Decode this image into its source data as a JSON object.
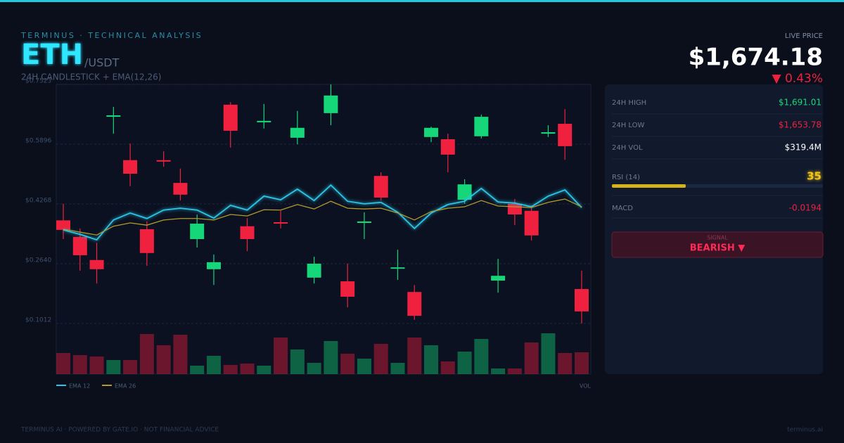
{
  "header": {
    "kicker": "TERMINUS · TECHNICAL ANALYSIS",
    "symbol": "ETH",
    "pair": "/USDT",
    "subtitle": "24H CANDLESTICK + EMA(12,26)"
  },
  "chart_data": {
    "type": "candlestick",
    "open": [
      0.382,
      0.337,
      0.274,
      0.664,
      0.546,
      0.358,
      0.546,
      0.484,
      0.331,
      0.249,
      0.697,
      0.366,
      0.649,
      0.377,
      0.607,
      0.226,
      0.674,
      0.216,
      0.375,
      0.503,
      0.251,
      0.187,
      0.609,
      0.603,
      0.438,
      0.611,
      0.218,
      0.427,
      0.408,
      0.618,
      0.645,
      0.195
    ],
    "high": [
      0.427,
      0.36,
      0.321,
      0.691,
      0.591,
      0.379,
      0.57,
      0.523,
      0.398,
      0.289,
      0.704,
      0.388,
      0.699,
      0.408,
      0.68,
      0.283,
      0.752,
      0.264,
      0.404,
      0.513,
      0.302,
      0.206,
      0.637,
      0.618,
      0.494,
      0.67,
      0.277,
      0.44,
      0.423,
      0.641,
      0.685,
      0.245
    ],
    "low": [
      0.331,
      0.245,
      0.21,
      0.618,
      0.475,
      0.258,
      0.528,
      0.436,
      0.308,
      0.206,
      0.58,
      0.298,
      0.632,
      0.36,
      0.589,
      0.21,
      0.641,
      0.145,
      0.331,
      0.436,
      0.22,
      0.111,
      0.595,
      0.513,
      0.427,
      0.605,
      0.185,
      0.369,
      0.327,
      0.609,
      0.547,
      0.101
    ],
    "close": [
      0.356,
      0.287,
      0.249,
      0.668,
      0.509,
      0.293,
      0.542,
      0.452,
      0.373,
      0.268,
      0.626,
      0.331,
      0.653,
      0.373,
      0.634,
      0.264,
      0.722,
      0.174,
      0.379,
      0.444,
      0.254,
      0.122,
      0.634,
      0.561,
      0.48,
      0.664,
      0.231,
      0.398,
      0.341,
      0.622,
      0.584,
      0.134
    ],
    "volume": [
      30,
      27,
      25,
      20,
      20,
      57,
      41,
      56,
      12,
      26,
      13,
      15,
      12,
      52,
      35,
      16,
      47,
      29,
      22,
      43,
      16,
      52,
      41,
      18,
      32,
      50,
      8,
      8,
      45,
      58,
      30,
      31
    ],
    "series": [
      {
        "name": "EMA 12",
        "color": "#2cc6e8",
        "values": [
          0.356,
          0.344,
          0.329,
          0.383,
          0.402,
          0.387,
          0.41,
          0.415,
          0.41,
          0.388,
          0.423,
          0.41,
          0.448,
          0.438,
          0.467,
          0.436,
          0.478,
          0.434,
          0.427,
          0.431,
          0.404,
          0.36,
          0.402,
          0.425,
          0.434,
          0.469,
          0.432,
          0.429,
          0.419,
          0.448,
          0.465,
          0.417
        ]
      },
      {
        "name": "EMA 26",
        "color": "#b39a2c",
        "values": [
          0.358,
          0.35,
          0.342,
          0.366,
          0.375,
          0.369,
          0.383,
          0.387,
          0.387,
          0.383,
          0.398,
          0.394,
          0.411,
          0.41,
          0.425,
          0.413,
          0.434,
          0.415,
          0.413,
          0.415,
          0.402,
          0.383,
          0.406,
          0.415,
          0.419,
          0.436,
          0.421,
          0.419,
          0.417,
          0.431,
          0.44,
          0.419
        ]
      }
    ],
    "volume_label": "VOL",
    "ylim": [
      0.1012,
      0.7523
    ],
    "yticks": [
      {
        "value": 0.7523,
        "label": "$0.7523"
      },
      {
        "value": 0.5896,
        "label": "$0.5896"
      },
      {
        "value": 0.4268,
        "label": "$0.4268"
      },
      {
        "value": 0.264,
        "label": "$0.2640"
      },
      {
        "value": 0.1012,
        "label": "$0.1012"
      }
    ],
    "grid": true,
    "up_color": "#16d67a",
    "down_color": "#f0203f"
  },
  "panel": {
    "live_label": "LIVE PRICE",
    "price": "$1,674.18",
    "change": "▼ 0.43%",
    "stats": [
      {
        "label": "24H HIGH",
        "value": "$1,691.01"
      },
      {
        "label": "24H LOW",
        "value": "$1,653.78"
      },
      {
        "label": "24H VOL",
        "value": "$319.4M"
      }
    ],
    "rsi_label": "RSI (14)",
    "rsi": 35,
    "rsi_lim": [
      0,
      100
    ],
    "macd_label": "MACD",
    "macd": -0.0194,
    "signal_label": "SIGNAL",
    "signal": "BEARISH ▼"
  },
  "footer": {
    "left": "TERMINUS AI · POWERED BY GATE.IO · NOT FINANCIAL ADVICE",
    "right": "terminus.ai"
  }
}
